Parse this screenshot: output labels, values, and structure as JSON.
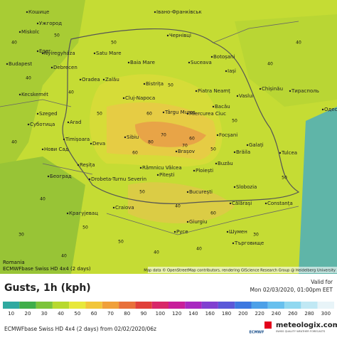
{
  "header": {
    "title": "Gusts, 1h (kph)",
    "region": "Romania",
    "model": "ECMWFbase Swiss HD 4x4 (2 days)",
    "valid_label": "Valid for",
    "valid_time": "Mon 02/03/2020, 01:00pm EET",
    "run": "ECMWFbase Swiss HD 4x4 (2 days) from 02/02/2020/06z",
    "attribution": "Map data © OpenStreetMap contributors, rendering GIScience Research Group @ Heidelberg University",
    "brand": "meteologix.com",
    "brand_tagline": "SWISS QUALITY WEATHER FORECASTS",
    "ecmwf": "ECMWF"
  },
  "legend": {
    "values": [
      10,
      20,
      30,
      40,
      50,
      60,
      70,
      80,
      90,
      100,
      120,
      140,
      160,
      180,
      200,
      220,
      240,
      260,
      280,
      300
    ],
    "colors": [
      "#2fa9a0",
      "#3fae4a",
      "#7cc43a",
      "#b8d92e",
      "#e8e83a",
      "#f2c63a",
      "#f0a03a",
      "#e8703a",
      "#e0403a",
      "#d82868",
      "#c81e9a",
      "#a828c0",
      "#8040d0",
      "#5a58d8",
      "#3c78e0",
      "#4ca0e8",
      "#68c0ee",
      "#90d8f0",
      "#c0e8f4",
      "#e8f4f8"
    ]
  },
  "cities": [
    "Кошице",
    "Ужгород",
    "Івано-Франківськ",
    "Miskolc",
    "Eger",
    "Budapest",
    "Nyíregyháza",
    "Debrecen",
    "Kecskemét",
    "Szeged",
    "Суботица",
    "Нови Сад",
    "Београд",
    "Крагујевац",
    "Чернівці",
    "Satu Mare",
    "Baia Mare",
    "Oradea",
    "Zalău",
    "Cluj-Napoca",
    "Bistrița",
    "Suceava",
    "Botoșani",
    "Iași",
    "Chișinău",
    "Тирасполь",
    "Одеса",
    "Piatra Neamț",
    "Bacău",
    "Vaslui",
    "Târgu Mureș",
    "Miercurea Ciuc",
    "Arad",
    "Timișoara",
    "Deva",
    "Sibiu",
    "Brașov",
    "Reșița",
    "Drobeta-Turnu Severin",
    "Râmnicu Vâlcea",
    "Pitești",
    "Ploiești",
    "Buzău",
    "Focșani",
    "Galați",
    "Brăila",
    "Tulcea",
    "București",
    "Slobozia",
    "Călărași",
    "Constanța",
    "Craiova",
    "Giurgiu",
    "Русе",
    "Шумен",
    "Търговище"
  ],
  "gusts": [
    40,
    50,
    40,
    40,
    50,
    60,
    50,
    70,
    80,
    60,
    50,
    40,
    40,
    50,
    60,
    70,
    50,
    40,
    40,
    50,
    30,
    40,
    50,
    40,
    40,
    30,
    50,
    60,
    40,
    50
  ]
}
